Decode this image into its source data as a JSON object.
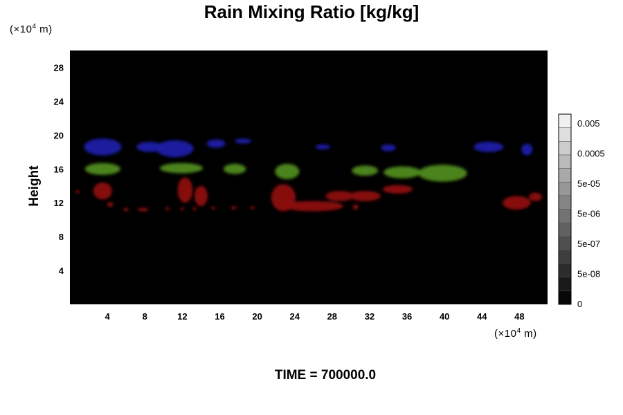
{
  "chart_data": {
    "type": "heatmap",
    "title": "Rain Mixing Ratio [kg/kg]",
    "ylabel": "Height",
    "x_unit": "(×10⁴ m)",
    "y_unit": "(×10⁴ m)",
    "x_unit_base": "(×10",
    "x_unit_exp": "4",
    "x_unit_tail": " m)",
    "y_unit_base": "(×10",
    "y_unit_exp": "4",
    "y_unit_tail": " m)",
    "xlim": [
      0,
      51
    ],
    "ylim": [
      0,
      30
    ],
    "x_ticks": [
      4,
      8,
      12,
      16,
      20,
      24,
      28,
      32,
      36,
      40,
      44,
      48
    ],
    "y_ticks": [
      4,
      8,
      12,
      16,
      20,
      24,
      28
    ],
    "background_color": "#000000",
    "colorbar": {
      "tick_labels": [
        "0.005",
        "0.0005",
        "5e-05",
        "5e-06",
        "5e-07",
        "5e-08",
        "0"
      ],
      "levels": 14
    },
    "regions": [
      {
        "layer": "upper",
        "color": "#1a1aa8",
        "blobs": [
          {
            "x": 3.5,
            "y": 18.6,
            "rx": 2.0,
            "ry": 1.0
          },
          {
            "x": 8.5,
            "y": 18.6,
            "rx": 1.4,
            "ry": 0.6
          },
          {
            "x": 11.2,
            "y": 18.4,
            "rx": 2.0,
            "ry": 1.0
          },
          {
            "x": 15.6,
            "y": 19.0,
            "rx": 1.0,
            "ry": 0.5
          },
          {
            "x": 18.5,
            "y": 19.3,
            "rx": 0.9,
            "ry": 0.3
          },
          {
            "x": 27.0,
            "y": 18.6,
            "rx": 0.8,
            "ry": 0.3
          },
          {
            "x": 34.0,
            "y": 18.5,
            "rx": 0.8,
            "ry": 0.4
          },
          {
            "x": 44.7,
            "y": 18.6,
            "rx": 1.6,
            "ry": 0.6
          },
          {
            "x": 48.8,
            "y": 18.3,
            "rx": 0.6,
            "ry": 0.7
          }
        ]
      },
      {
        "layer": "middle",
        "color": "#4f8a1c",
        "blobs": [
          {
            "x": 3.5,
            "y": 16.0,
            "rx": 1.9,
            "ry": 0.7
          },
          {
            "x": 11.9,
            "y": 16.1,
            "rx": 2.3,
            "ry": 0.6
          },
          {
            "x": 17.6,
            "y": 16.0,
            "rx": 1.2,
            "ry": 0.6
          },
          {
            "x": 23.2,
            "y": 15.7,
            "rx": 1.3,
            "ry": 0.9
          },
          {
            "x": 31.5,
            "y": 15.8,
            "rx": 1.4,
            "ry": 0.6
          },
          {
            "x": 35.5,
            "y": 15.6,
            "rx": 2.0,
            "ry": 0.7
          },
          {
            "x": 39.8,
            "y": 15.5,
            "rx": 2.6,
            "ry": 1.0
          }
        ]
      },
      {
        "layer": "lower",
        "color": "#8e1212",
        "blobs": [
          {
            "x": 3.5,
            "y": 13.4,
            "rx": 1.0,
            "ry": 1.0
          },
          {
            "x": 12.3,
            "y": 13.5,
            "rx": 0.8,
            "ry": 1.5
          },
          {
            "x": 14.0,
            "y": 12.8,
            "rx": 0.7,
            "ry": 1.2
          },
          {
            "x": 22.8,
            "y": 12.6,
            "rx": 1.3,
            "ry": 1.6
          },
          {
            "x": 26.0,
            "y": 11.6,
            "rx": 3.2,
            "ry": 0.6
          },
          {
            "x": 28.8,
            "y": 12.8,
            "rx": 1.5,
            "ry": 0.6
          },
          {
            "x": 31.5,
            "y": 12.8,
            "rx": 1.7,
            "ry": 0.6
          },
          {
            "x": 35.0,
            "y": 13.6,
            "rx": 1.6,
            "ry": 0.5
          },
          {
            "x": 47.7,
            "y": 12.0,
            "rx": 1.5,
            "ry": 0.8
          },
          {
            "x": 49.7,
            "y": 12.7,
            "rx": 0.7,
            "ry": 0.5
          },
          {
            "x": 4.3,
            "y": 11.8,
            "rx": 0.3,
            "ry": 0.3
          },
          {
            "x": 6.0,
            "y": 11.2,
            "rx": 0.3,
            "ry": 0.2
          },
          {
            "x": 7.8,
            "y": 11.2,
            "rx": 0.6,
            "ry": 0.2
          },
          {
            "x": 10.4,
            "y": 11.3,
            "rx": 0.2,
            "ry": 0.2
          },
          {
            "x": 12.0,
            "y": 11.3,
            "rx": 0.2,
            "ry": 0.2
          },
          {
            "x": 13.3,
            "y": 11.3,
            "rx": 0.2,
            "ry": 0.2
          },
          {
            "x": 15.3,
            "y": 11.4,
            "rx": 0.2,
            "ry": 0.2
          },
          {
            "x": 17.5,
            "y": 11.4,
            "rx": 0.3,
            "ry": 0.2
          },
          {
            "x": 19.5,
            "y": 11.4,
            "rx": 0.2,
            "ry": 0.2
          },
          {
            "x": 30.5,
            "y": 11.5,
            "rx": 0.3,
            "ry": 0.3
          },
          {
            "x": 0.8,
            "y": 13.3,
            "rx": 0.2,
            "ry": 0.2
          }
        ]
      }
    ]
  },
  "footer_text": "TIME = 700000.0"
}
